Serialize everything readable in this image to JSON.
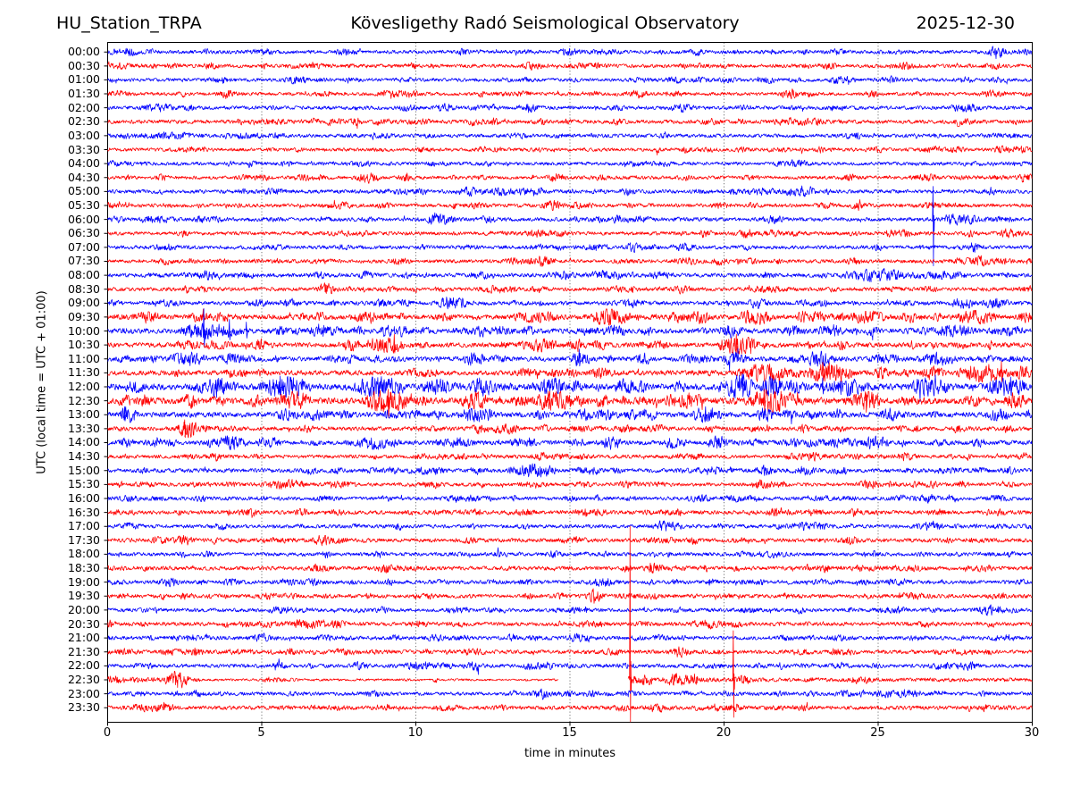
{
  "header": {
    "station": "HU_Station_TRPA",
    "title": "Kövesligethy Radó Seismological Observatory",
    "date": "2025-12-30"
  },
  "axes": {
    "xlabel": "time in minutes",
    "ylabel": "UTC (local time = UTC + 01:00)",
    "x_tick_labels": [
      "0",
      "5",
      "10",
      "15",
      "20",
      "25",
      "30"
    ],
    "x_ticks": [
      0,
      5,
      10,
      15,
      20,
      25,
      30
    ],
    "x_grid_minutes": [
      5,
      10,
      15,
      20,
      25
    ],
    "x_range": [
      0,
      30
    ]
  },
  "colors": {
    "trace_blue": "#0000ff",
    "trace_red": "#ff0000",
    "axis": "#000000",
    "grid": "#000000",
    "background": "#ffffff"
  },
  "chart_data": {
    "type": "line",
    "subtype": "helicorder-dayplot",
    "title": "Kövesligethy Radó Seismological Observatory",
    "station": "HU_Station_TRPA",
    "date": "2025-12-30",
    "xlabel": "time in minutes",
    "ylabel": "UTC (local time = UTC + 01:00)",
    "x_range": [
      0,
      30
    ],
    "minutes_per_row": 30,
    "grid": true,
    "rows": [
      {
        "t": "00:00",
        "color": "blue",
        "noise": 1.7
      },
      {
        "t": "00:30",
        "color": "red",
        "noise": 1.7
      },
      {
        "t": "01:00",
        "color": "blue",
        "noise": 1.6
      },
      {
        "t": "01:30",
        "color": "red",
        "noise": 1.6
      },
      {
        "t": "02:00",
        "color": "blue",
        "noise": 1.7
      },
      {
        "t": "02:30",
        "color": "red",
        "noise": 1.8
      },
      {
        "t": "03:00",
        "color": "blue",
        "noise": 1.7
      },
      {
        "t": "03:30",
        "color": "red",
        "noise": 1.6
      },
      {
        "t": "04:00",
        "color": "blue",
        "noise": 1.6
      },
      {
        "t": "04:30",
        "color": "red",
        "noise": 1.6
      },
      {
        "t": "05:00",
        "color": "blue",
        "noise": 1.8
      },
      {
        "t": "05:30",
        "color": "red",
        "noise": 1.7
      },
      {
        "t": "06:00",
        "color": "blue",
        "noise": 1.8
      },
      {
        "t": "06:30",
        "color": "red",
        "noise": 1.7
      },
      {
        "t": "07:00",
        "color": "blue",
        "noise": 1.7
      },
      {
        "t": "07:30",
        "color": "red",
        "noise": 1.7
      },
      {
        "t": "08:00",
        "color": "blue",
        "noise": 1.9
      },
      {
        "t": "08:30",
        "color": "red",
        "noise": 1.8
      },
      {
        "t": "09:00",
        "color": "blue",
        "noise": 1.9
      },
      {
        "t": "09:30",
        "color": "red",
        "noise": 2.3
      },
      {
        "t": "10:00",
        "color": "blue",
        "noise": 2.3
      },
      {
        "t": "10:30",
        "color": "red",
        "noise": 2.2
      },
      {
        "t": "11:00",
        "color": "blue",
        "noise": 2.2
      },
      {
        "t": "11:30",
        "color": "red",
        "noise": 2.3
      },
      {
        "t": "12:00",
        "color": "blue",
        "noise": 2.9
      },
      {
        "t": "12:30",
        "color": "red",
        "noise": 2.8
      },
      {
        "t": "13:00",
        "color": "blue",
        "noise": 2.4
      },
      {
        "t": "13:30",
        "color": "red",
        "noise": 1.9
      },
      {
        "t": "14:00",
        "color": "blue",
        "noise": 2.1
      },
      {
        "t": "14:30",
        "color": "red",
        "noise": 1.7
      },
      {
        "t": "15:00",
        "color": "blue",
        "noise": 1.9
      },
      {
        "t": "15:30",
        "color": "red",
        "noise": 1.7
      },
      {
        "t": "16:00",
        "color": "blue",
        "noise": 1.7
      },
      {
        "t": "16:30",
        "color": "red",
        "noise": 1.8
      },
      {
        "t": "17:00",
        "color": "blue",
        "noise": 1.7
      },
      {
        "t": "17:30",
        "color": "red",
        "noise": 1.8
      },
      {
        "t": "18:00",
        "color": "blue",
        "noise": 1.7
      },
      {
        "t": "18:30",
        "color": "red",
        "noise": 1.8
      },
      {
        "t": "19:00",
        "color": "blue",
        "noise": 1.8
      },
      {
        "t": "19:30",
        "color": "red",
        "noise": 1.8
      },
      {
        "t": "20:00",
        "color": "blue",
        "noise": 1.7
      },
      {
        "t": "20:30",
        "color": "red",
        "noise": 1.8
      },
      {
        "t": "21:00",
        "color": "blue",
        "noise": 1.8
      },
      {
        "t": "21:30",
        "color": "red",
        "noise": 1.8
      },
      {
        "t": "22:00",
        "color": "blue",
        "noise": 1.8
      },
      {
        "t": "22:30",
        "color": "red",
        "noise": 1.8
      },
      {
        "t": "23:00",
        "color": "blue",
        "noise": 1.7
      },
      {
        "t": "23:30",
        "color": "red",
        "noise": 1.8
      }
    ],
    "events": [
      {
        "row": "05:00",
        "bursts": [
          [
            20.8,
            21.6,
            3
          ]
        ]
      },
      {
        "row": "06:00",
        "bursts": [
          [
            26.85,
            28.4,
            5
          ],
          [
            28.4,
            29.6,
            2.5
          ]
        ],
        "spikes": [
          [
            26.78,
            37,
            52
          ]
        ]
      },
      {
        "row": "08:00",
        "bursts": [
          [
            24.0,
            26.0,
            6
          ],
          [
            26.1,
            28.1,
            3.5
          ]
        ]
      },
      {
        "row": "09:00",
        "bursts": [
          [
            27.3,
            28.2,
            5
          ],
          [
            28.4,
            29.3,
            5
          ]
        ]
      },
      {
        "row": "09:30",
        "bursts": [
          [
            2.5,
            3.5,
            4
          ],
          [
            6.6,
            7.2,
            4
          ],
          [
            7.9,
            8.4,
            4
          ],
          [
            13.2,
            14.8,
            5
          ],
          [
            15.4,
            17.1,
            7
          ],
          [
            18.2,
            18.8,
            5
          ],
          [
            20.4,
            21.6,
            7
          ],
          [
            22.3,
            22.8,
            5
          ],
          [
            24.0,
            25.3,
            6
          ],
          [
            25.7,
            26.3,
            5
          ],
          [
            27.6,
            28.9,
            6
          ],
          [
            29.5,
            30,
            6
          ]
        ],
        "spikes": [
          [
            3.1,
            9,
            7
          ]
        ]
      },
      {
        "row": "10:00",
        "bursts": [
          [
            2.2,
            4.5,
            7
          ],
          [
            5.4,
            5.9,
            4
          ],
          [
            6.5,
            7.0,
            4
          ],
          [
            7.9,
            8.4,
            4
          ],
          [
            8.8,
            9.3,
            5
          ],
          [
            11.8,
            12.5,
            5
          ],
          [
            13.4,
            13.9,
            4
          ],
          [
            16.1,
            16.9,
            5
          ],
          [
            19.8,
            20.7,
            6
          ],
          [
            22.9,
            23.5,
            4
          ],
          [
            24.5,
            25.1,
            4
          ],
          [
            26.8,
            28.2,
            5
          ],
          [
            28.4,
            30,
            4
          ]
        ],
        "spikes": [
          [
            3.12,
            25,
            18
          ],
          [
            3.95,
            13,
            10
          ],
          [
            4.5,
            10,
            8
          ]
        ]
      },
      {
        "row": "10:30",
        "bursts": [
          [
            8.3,
            9.7,
            8
          ],
          [
            13.3,
            14.7,
            6
          ],
          [
            15.7,
            16.2,
            5
          ],
          [
            19.7,
            21.2,
            8
          ],
          [
            23.5,
            24.1,
            4
          ],
          [
            27.4,
            28.0,
            3
          ]
        ],
        "spikes": [
          [
            9.3,
            12,
            9
          ],
          [
            20.4,
            12,
            9
          ]
        ]
      },
      {
        "row": "11:00",
        "bursts": [
          [
            1.9,
            3.3,
            6
          ],
          [
            3.5,
            4.7,
            5
          ],
          [
            11.5,
            12.3,
            6
          ],
          [
            15.0,
            15.7,
            7
          ],
          [
            17.1,
            17.7,
            5
          ],
          [
            19.9,
            20.7,
            6
          ],
          [
            22.5,
            23.6,
            7
          ],
          [
            26.4,
            27.6,
            6
          ]
        ],
        "spikes": [
          [
            15.3,
            11,
            8
          ]
        ]
      },
      {
        "row": "11:30",
        "bursts": [
          [
            4.8,
            5.2,
            3
          ],
          [
            10.4,
            10.8,
            3
          ],
          [
            14.8,
            15.3,
            4
          ],
          [
            20.3,
            22.3,
            8
          ],
          [
            22.6,
            24.3,
            9
          ],
          [
            24.8,
            25.4,
            5
          ],
          [
            26.3,
            27.2,
            6
          ],
          [
            27.5,
            29.2,
            8
          ],
          [
            29.4,
            30,
            6
          ]
        ],
        "spikes": [
          [
            23.2,
            12,
            9
          ],
          [
            29.0,
            13,
            10
          ]
        ]
      },
      {
        "row": "12:00",
        "bursts": [
          [
            0.4,
            1.3,
            5
          ],
          [
            4.8,
            6.7,
            9
          ],
          [
            7.9,
            9.7,
            9
          ],
          [
            10.1,
            11.2,
            7
          ],
          [
            11.7,
            12.7,
            8
          ],
          [
            13.9,
            14.9,
            8
          ],
          [
            16.4,
            17.2,
            7
          ],
          [
            18.3,
            18.8,
            5
          ],
          [
            20.0,
            21.0,
            12
          ],
          [
            21.1,
            22.0,
            9
          ],
          [
            23.2,
            24.7,
            8
          ],
          [
            25.9,
            27.4,
            8
          ],
          [
            28.4,
            30,
            8
          ]
        ],
        "spikes": [
          [
            5.6,
            12,
            9
          ],
          [
            8.6,
            11,
            9
          ],
          [
            20.6,
            14,
            11
          ],
          [
            23.2,
            10,
            8
          ],
          [
            29.3,
            11,
            9
          ]
        ]
      },
      {
        "row": "12:30",
        "bursts": [
          [
            0.3,
            0.8,
            5
          ],
          [
            5.4,
            6.7,
            8
          ],
          [
            8.2,
            9.9,
            10
          ],
          [
            11.4,
            12.4,
            8
          ],
          [
            13.7,
            15.2,
            9
          ],
          [
            15.8,
            16.3,
            6
          ],
          [
            18.4,
            19.4,
            7
          ],
          [
            20.6,
            22.5,
            10
          ],
          [
            24.2,
            25.2,
            8
          ],
          [
            27.7,
            28.4,
            5
          ],
          [
            29.0,
            29.9,
            7
          ]
        ],
        "spikes": [
          [
            9.1,
            13,
            19
          ],
          [
            14.3,
            11,
            9
          ],
          [
            21.3,
            13,
            11
          ],
          [
            24.6,
            9,
            13
          ]
        ]
      },
      {
        "row": "13:00",
        "bursts": [
          [
            0.3,
            1.0,
            7
          ],
          [
            5.4,
            6.3,
            5
          ],
          [
            8.9,
            9.4,
            4
          ],
          [
            11.3,
            12.7,
            6
          ],
          [
            15.1,
            15.8,
            5
          ],
          [
            17.1,
            17.9,
            5
          ],
          [
            18.9,
            20.0,
            7
          ],
          [
            21.0,
            21.7,
            6
          ],
          [
            23.4,
            23.9,
            5
          ],
          [
            25.0,
            25.7,
            6
          ],
          [
            28.4,
            29.4,
            5
          ],
          [
            29.7,
            30,
            4
          ]
        ],
        "spikes": [
          [
            0.55,
            9,
            7
          ],
          [
            19.4,
            9,
            7
          ]
        ]
      },
      {
        "row": "13:30",
        "bursts": [
          [
            2.2,
            3.0,
            8
          ],
          [
            12.4,
            13.4,
            5
          ],
          [
            20.8,
            21.2,
            3
          ],
          [
            26.0,
            26.4,
            3
          ]
        ],
        "spikes": [
          [
            2.5,
            10,
            8
          ]
        ]
      },
      {
        "row": "14:00",
        "bursts": [
          [
            0.3,
            0.9,
            4
          ],
          [
            3.4,
            4.6,
            6
          ],
          [
            4.8,
            5.7,
            5
          ],
          [
            8.2,
            9.2,
            6
          ],
          [
            11.0,
            11.6,
            5
          ],
          [
            13.0,
            13.5,
            4
          ],
          [
            16.0,
            16.7,
            6
          ],
          [
            18.0,
            18.6,
            5
          ],
          [
            19.4,
            20.2,
            6
          ],
          [
            22.0,
            22.5,
            4
          ],
          [
            24.4,
            25.4,
            6
          ],
          [
            28.0,
            28.5,
            4
          ]
        ]
      },
      {
        "row": "15:00",
        "bursts": [
          [
            10.5,
            11.0,
            3
          ],
          [
            12.9,
            14.7,
            6
          ],
          [
            19.5,
            20.0,
            3
          ]
        ]
      },
      {
        "row": "15:30",
        "bursts": [
          [
            27.5,
            28.0,
            3
          ]
        ]
      },
      {
        "row": "16:30",
        "bursts": [
          [
            18.3,
            18.7,
            3
          ]
        ]
      },
      {
        "row": "22:30",
        "bursts": [
          [
            1.8,
            2.7,
            8
          ],
          [
            17.05,
            17.8,
            5
          ],
          [
            20.4,
            20.9,
            4
          ]
        ],
        "spikes": [
          [
            16.95,
            172,
            47
          ],
          [
            20.3,
            55,
            42
          ]
        ],
        "gaps": [
          [
            14.62,
            16.88
          ]
        ],
        "quiet": [
          [
            3.0,
            12.4,
            0.6
          ],
          [
            12.4,
            14.62,
            0.4
          ]
        ]
      },
      {
        "row": "23:00",
        "bursts": [
          [
            24.3,
            24.6,
            4
          ]
        ]
      }
    ]
  }
}
